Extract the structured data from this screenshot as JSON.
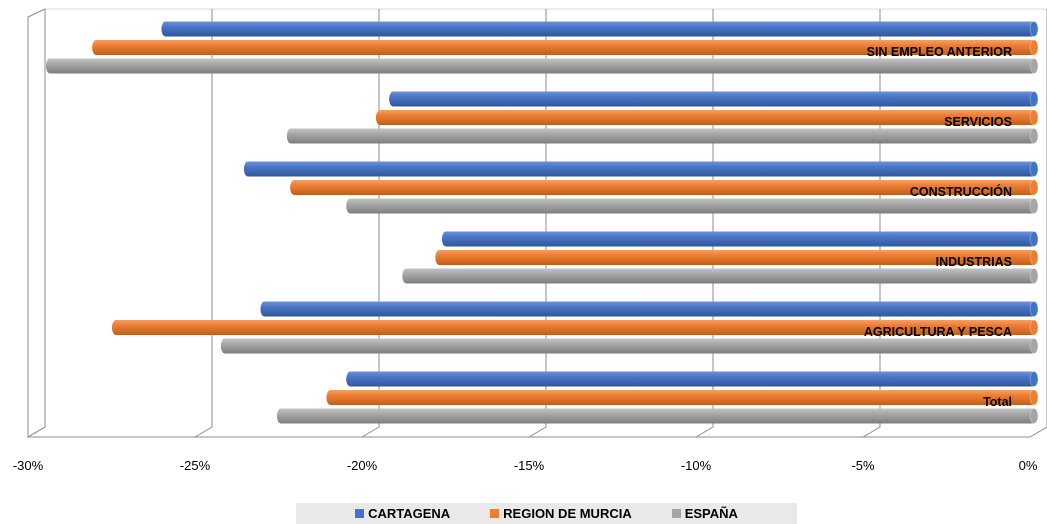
{
  "chart_data": {
    "type": "bar",
    "orientation": "horizontal",
    "style": "3d-cylinder",
    "categories": [
      "SIN EMPLEO ANTERIOR",
      "SERVICIOS",
      "CONSTRUCCIÓN",
      "INDUSTRIAS",
      "AGRICULTURA Y PESCA",
      "Total"
    ],
    "series": [
      {
        "name": "CARTAGENA",
        "color": "#4472c4",
        "values": [
          -26.2,
          -19.3,
          -23.7,
          -17.7,
          -23.2,
          -20.6
        ]
      },
      {
        "name": "REGION DE MURCIA",
        "color": "#ed7d31",
        "values": [
          -28.3,
          -19.7,
          -22.3,
          -17.9,
          -27.7,
          -21.2
        ]
      },
      {
        "name": "ESPAÑA",
        "color": "#a5a5a5",
        "values": [
          -29.7,
          -22.4,
          -20.6,
          -18.9,
          -24.4,
          -22.7
        ]
      }
    ],
    "x_ticks": [
      "-30%",
      "-25%",
      "-20%",
      "-15%",
      "-10%",
      "-5%",
      "0%"
    ],
    "xlim": [
      -30,
      0
    ],
    "grid": true,
    "legend_position": "bottom"
  }
}
